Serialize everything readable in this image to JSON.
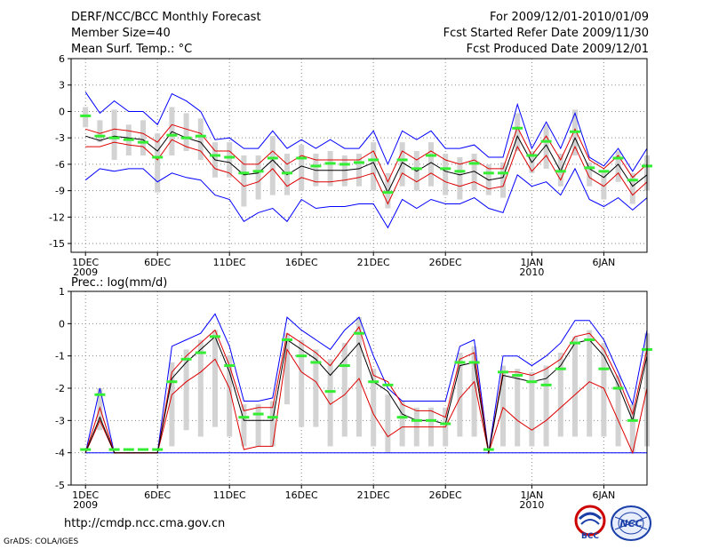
{
  "header": {
    "title": "DERF/NCC/BCC Monthly Forecast",
    "member_size": "Member Size=40",
    "variable1": "Mean Surf. Temp.: °C",
    "period": "For 2009/12/01-2010/01/09",
    "fcst_started": "Fcst Started Refer Date 2009/11/30",
    "fcst_produced": "Fcst Produced Date 2009/12/01"
  },
  "footer": {
    "url": "http://cmdp.ncc.cma.gov.cn",
    "grads": "GrADS: COLA/IGES",
    "logo_bcc_text": "BCC",
    "logo_ncc_text": "NCC"
  },
  "colors": {
    "max_min": "#0000ff",
    "quartile": "#dd0000",
    "median": "#000000",
    "box": "#d3d3d3",
    "mean": "#33ee33",
    "grid": "#888888"
  },
  "chart_data": [
    {
      "type": "line",
      "name": "temperature",
      "ylabel": "Mean Surf. Temp.: °C",
      "ylim": [
        -16,
        6
      ],
      "yticks": [
        6,
        3,
        0,
        -3,
        -6,
        -9,
        -12,
        -15
      ],
      "xlim": [
        0,
        40
      ],
      "xticks": [
        {
          "day": 1,
          "label": "1DEC",
          "sub": "2009"
        },
        {
          "day": 6,
          "label": "6DEC",
          "sub": ""
        },
        {
          "day": 11,
          "label": "11DEC",
          "sub": ""
        },
        {
          "day": 16,
          "label": "16DEC",
          "sub": ""
        },
        {
          "day": 21,
          "label": "21DEC",
          "sub": ""
        },
        {
          "day": 26,
          "label": "26DEC",
          "sub": ""
        },
        {
          "day": 32,
          "label": "1JAN",
          "sub": "2010"
        },
        {
          "day": 37,
          "label": "6JAN",
          "sub": ""
        }
      ],
      "x": [
        1,
        2,
        3,
        4,
        5,
        6,
        7,
        8,
        9,
        10,
        11,
        12,
        13,
        14,
        15,
        16,
        17,
        18,
        19,
        20,
        21,
        22,
        23,
        24,
        25,
        26,
        27,
        28,
        29,
        30,
        31,
        32,
        33,
        34,
        35,
        36,
        37,
        38,
        39,
        40
      ],
      "series": [
        {
          "name": "max",
          "values": [
            2.2,
            -0.2,
            1.2,
            0.0,
            0.0,
            -1.5,
            2.0,
            1.2,
            0.0,
            -3.2,
            -3.0,
            -4.2,
            -4.2,
            -2.2,
            -4.2,
            -3.2,
            -4.2,
            -3.2,
            -4.2,
            -4.2,
            -2.2,
            -6.0,
            -2.2,
            -3.2,
            -2.2,
            -4.2,
            -4.2,
            -3.8,
            -5.2,
            -5.2,
            0.8,
            -4.2,
            -1.2,
            -4.2,
            -0.2,
            -5.2,
            -6.2,
            -4.2,
            -6.8,
            -4.2
          ]
        },
        {
          "name": "q75",
          "values": [
            -2.0,
            -2.5,
            -2.0,
            -2.2,
            -2.5,
            -3.5,
            -1.5,
            -2.0,
            -2.5,
            -4.5,
            -4.5,
            -6.0,
            -6.0,
            -4.5,
            -6.0,
            -5.0,
            -5.5,
            -5.5,
            -5.5,
            -5.5,
            -4.5,
            -8.0,
            -4.5,
            -5.5,
            -4.5,
            -5.5,
            -6.0,
            -5.5,
            -6.5,
            -6.5,
            -1.8,
            -5.0,
            -2.8,
            -5.5,
            -2.0,
            -5.5,
            -6.5,
            -5.0,
            -7.5,
            -6.0
          ]
        },
        {
          "name": "median",
          "values": [
            -2.8,
            -3.3,
            -2.8,
            -3.0,
            -3.2,
            -4.5,
            -2.3,
            -3.0,
            -3.5,
            -5.5,
            -5.8,
            -7.2,
            -7.0,
            -5.5,
            -7.2,
            -6.2,
            -6.7,
            -6.7,
            -6.7,
            -6.5,
            -5.8,
            -9.2,
            -5.8,
            -6.8,
            -5.8,
            -6.8,
            -7.2,
            -6.8,
            -7.8,
            -7.5,
            -2.8,
            -5.8,
            -3.8,
            -6.8,
            -3.0,
            -6.5,
            -7.5,
            -6.0,
            -8.5,
            -7.2
          ]
        },
        {
          "name": "q25",
          "values": [
            -4.0,
            -4.0,
            -3.5,
            -3.8,
            -4.0,
            -5.5,
            -3.2,
            -4.0,
            -4.5,
            -6.5,
            -7.0,
            -8.5,
            -8.0,
            -6.5,
            -8.5,
            -7.5,
            -8.0,
            -8.0,
            -7.8,
            -7.5,
            -7.0,
            -10.5,
            -7.0,
            -8.0,
            -7.0,
            -8.0,
            -8.5,
            -8.0,
            -8.8,
            -8.5,
            -4.0,
            -6.8,
            -5.0,
            -7.8,
            -4.0,
            -7.5,
            -8.5,
            -7.0,
            -9.5,
            -8.0
          ]
        },
        {
          "name": "min",
          "values": [
            -7.8,
            -6.5,
            -6.8,
            -6.5,
            -6.5,
            -8.0,
            -7.0,
            -7.5,
            -7.8,
            -9.5,
            -10.0,
            -12.5,
            -11.5,
            -11.0,
            -12.5,
            -10.0,
            -11.0,
            -10.8,
            -10.8,
            -10.5,
            -10.5,
            -13.2,
            -10.0,
            -11.0,
            -10.0,
            -10.5,
            -10.5,
            -9.8,
            -11.0,
            -11.5,
            -7.2,
            -8.5,
            -8.0,
            -9.5,
            -6.5,
            -10.0,
            -10.8,
            -9.8,
            -11.2,
            -9.8
          ]
        },
        {
          "name": "box_top",
          "values": [
            0.5,
            -1.0,
            0.2,
            -1.5,
            -1.0,
            -2.5,
            0.5,
            -0.2,
            -0.8,
            -3.5,
            -3.5,
            -5.0,
            -5.0,
            -2.8,
            -4.8,
            -3.8,
            -4.8,
            -4.5,
            -5.0,
            -4.8,
            -3.5,
            -7.0,
            -3.5,
            -4.5,
            -3.5,
            -4.8,
            -5.2,
            -4.8,
            -6.0,
            -5.8,
            -0.2,
            -4.5,
            -1.5,
            -4.8,
            0.2,
            -5.8,
            -6.8,
            -4.5,
            -7.0,
            -5.0
          ]
        },
        {
          "name": "box_bottom",
          "values": [
            -1.8,
            -3.5,
            -5.5,
            -5.0,
            -5.0,
            -9.2,
            -5.0,
            -4.5,
            -5.5,
            -7.5,
            -7.5,
            -10.8,
            -10.0,
            -9.5,
            -9.5,
            -9.0,
            -8.5,
            -8.5,
            -8.5,
            -8.5,
            -9.0,
            -11.0,
            -8.5,
            -9.0,
            -8.5,
            -9.5,
            -10.0,
            -9.0,
            -9.5,
            -9.8,
            -4.5,
            -7.0,
            -6.5,
            -8.5,
            -5.0,
            -8.5,
            -10.0,
            -8.0,
            -10.5,
            -9.0
          ]
        },
        {
          "name": "mean",
          "values": [
            -0.5,
            -2.8,
            -3.0,
            -3.2,
            -3.5,
            -5.2,
            -2.7,
            -3.0,
            -2.8,
            -5.0,
            -5.2,
            -7.0,
            -6.8,
            -5.3,
            -7.0,
            -5.3,
            -6.2,
            -5.9,
            -6.0,
            -5.8,
            -5.5,
            -9.2,
            -5.5,
            -6.5,
            -5.0,
            -6.5,
            -6.8,
            -5.9,
            -7.0,
            -7.0,
            -1.9,
            -5.0,
            -3.4,
            -6.8,
            -2.3,
            -6.4,
            -6.8,
            -5.3,
            -7.8,
            -6.2
          ]
        }
      ]
    },
    {
      "type": "line",
      "name": "precipitation",
      "ylabel": "Prec.: log(mm/d)",
      "ylim": [
        -5,
        1
      ],
      "yticks": [
        1,
        0,
        -1,
        -2,
        -3,
        -4,
        -5
      ],
      "xlim": [
        0,
        40
      ],
      "xticks": [
        {
          "day": 1,
          "label": "1DEC",
          "sub": "2009"
        },
        {
          "day": 6,
          "label": "6DEC",
          "sub": ""
        },
        {
          "day": 11,
          "label": "11DEC",
          "sub": ""
        },
        {
          "day": 16,
          "label": "16DEC",
          "sub": ""
        },
        {
          "day": 21,
          "label": "21DEC",
          "sub": ""
        },
        {
          "day": 26,
          "label": "26DEC",
          "sub": ""
        },
        {
          "day": 32,
          "label": "1JAN",
          "sub": "2010"
        },
        {
          "day": 37,
          "label": "6JAN",
          "sub": ""
        }
      ],
      "x": [
        1,
        2,
        3,
        4,
        5,
        6,
        7,
        8,
        9,
        10,
        11,
        12,
        13,
        14,
        15,
        16,
        17,
        18,
        19,
        20,
        21,
        22,
        23,
        24,
        25,
        26,
        27,
        28,
        29,
        30,
        31,
        32,
        33,
        34,
        35,
        36,
        37,
        38,
        39,
        40
      ],
      "series": [
        {
          "name": "max",
          "values": [
            -4.0,
            -2.0,
            -4.0,
            -4.0,
            -4.0,
            -4.0,
            -0.7,
            -0.5,
            -0.3,
            0.3,
            -0.7,
            -2.4,
            -2.4,
            -2.3,
            0.2,
            -0.2,
            -0.5,
            -0.8,
            -0.2,
            0.2,
            -1.0,
            -2.0,
            -2.4,
            -2.4,
            -2.4,
            -2.4,
            -0.7,
            -0.5,
            -4.0,
            -1.0,
            -1.0,
            -1.3,
            -1.0,
            -0.6,
            0.1,
            0.1,
            -0.5,
            -1.5,
            -2.5,
            -0.2
          ]
        },
        {
          "name": "q75",
          "values": [
            -4.0,
            -2.6,
            -4.0,
            -4.0,
            -4.0,
            -4.0,
            -1.5,
            -1.0,
            -0.6,
            -0.2,
            -1.3,
            -2.7,
            -2.6,
            -2.6,
            -0.3,
            -0.6,
            -0.9,
            -1.3,
            -0.7,
            -0.1,
            -1.6,
            -1.8,
            -2.5,
            -2.7,
            -2.7,
            -2.9,
            -1.1,
            -0.9,
            -4.0,
            -1.5,
            -1.5,
            -1.6,
            -1.4,
            -1.1,
            -0.4,
            -0.3,
            -0.8,
            -1.7,
            -2.8,
            -0.8
          ]
        },
        {
          "name": "median",
          "values": [
            -4.0,
            -2.9,
            -4.0,
            -4.0,
            -4.0,
            -4.0,
            -1.7,
            -1.2,
            -0.8,
            -0.4,
            -1.5,
            -3.0,
            -3.0,
            -3.0,
            -0.5,
            -0.8,
            -1.1,
            -1.6,
            -1.1,
            -0.6,
            -1.8,
            -2.1,
            -2.8,
            -3.0,
            -3.0,
            -3.1,
            -1.3,
            -1.2,
            -4.0,
            -1.6,
            -1.7,
            -1.8,
            -1.7,
            -1.3,
            -0.6,
            -0.5,
            -1.0,
            -1.9,
            -3.0,
            -1.0
          ]
        },
        {
          "name": "q25",
          "values": [
            -4.0,
            -3.0,
            -4.0,
            -4.0,
            -4.0,
            -4.0,
            -2.2,
            -1.8,
            -1.5,
            -1.1,
            -2.0,
            -3.9,
            -3.8,
            -3.8,
            -0.8,
            -1.5,
            -1.8,
            -2.5,
            -2.2,
            -1.7,
            -2.8,
            -3.5,
            -3.2,
            -3.2,
            -3.2,
            -3.2,
            -2.3,
            -1.8,
            -4.0,
            -2.6,
            -3.0,
            -3.3,
            -3.0,
            -2.6,
            -2.2,
            -1.8,
            -2.0,
            -3.0,
            -4.0,
            -2.0
          ]
        },
        {
          "name": "min",
          "values": [
            -4.0,
            -4.0,
            -4.0,
            -4.0,
            -4.0,
            -4.0,
            -4.0,
            -4.0,
            -4.0,
            -4.0,
            -4.0,
            -4.0,
            -4.0,
            -4.0,
            -4.0,
            -4.0,
            -4.0,
            -4.0,
            -4.0,
            -4.0,
            -4.0,
            -4.0,
            -4.0,
            -4.0,
            -4.0,
            -4.0,
            -4.0,
            -4.0,
            -4.0,
            -4.0,
            -4.0,
            -4.0,
            -4.0,
            -4.0,
            -4.0,
            -4.0,
            -4.0,
            -4.0,
            -4.0,
            -4.0
          ]
        },
        {
          "name": "box_top",
          "values": [
            -4.0,
            -2.0,
            -4.0,
            -4.0,
            -4.0,
            -4.0,
            -1.2,
            -0.8,
            -0.5,
            -0.2,
            -1.0,
            -2.5,
            -2.5,
            -2.4,
            -0.3,
            -0.5,
            -0.8,
            -1.1,
            -0.6,
            0.2,
            -1.4,
            -2.2,
            -2.4,
            -2.6,
            -2.6,
            -2.6,
            -0.9,
            -0.7,
            -4.0,
            -1.3,
            -1.4,
            -1.5,
            -1.3,
            -0.9,
            -0.4,
            -0.2,
            -0.6,
            -1.6,
            -2.5,
            -0.3
          ]
        },
        {
          "name": "box_bottom",
          "values": [
            -4.0,
            -3.3,
            -4.0,
            -4.0,
            -4.0,
            -4.0,
            -3.8,
            -3.3,
            -3.5,
            -3.2,
            -3.5,
            -3.8,
            -3.8,
            -3.8,
            -2.5,
            -3.2,
            -3.2,
            -3.8,
            -3.5,
            -3.5,
            -3.8,
            -4.0,
            -3.8,
            -3.8,
            -3.8,
            -3.8,
            -3.5,
            -3.5,
            -4.0,
            -3.8,
            -3.8,
            -3.8,
            -3.8,
            -3.5,
            -3.5,
            -3.5,
            -3.5,
            -3.8,
            -4.0,
            -3.8
          ]
        },
        {
          "name": "mean",
          "values": [
            -3.9,
            -2.2,
            -3.9,
            -3.9,
            -3.9,
            -3.9,
            -1.8,
            -1.1,
            -0.9,
            -0.4,
            -1.3,
            -2.9,
            -2.8,
            -2.9,
            -0.5,
            -1.0,
            -1.2,
            -2.1,
            -1.3,
            -0.3,
            -1.8,
            -1.9,
            -2.9,
            -3.0,
            -3.0,
            -3.1,
            -1.2,
            -1.2,
            -3.9,
            -1.5,
            -1.6,
            -1.8,
            -1.9,
            -1.4,
            -0.6,
            -0.5,
            -1.4,
            -2.0,
            -3.0,
            -0.8
          ]
        }
      ]
    }
  ]
}
